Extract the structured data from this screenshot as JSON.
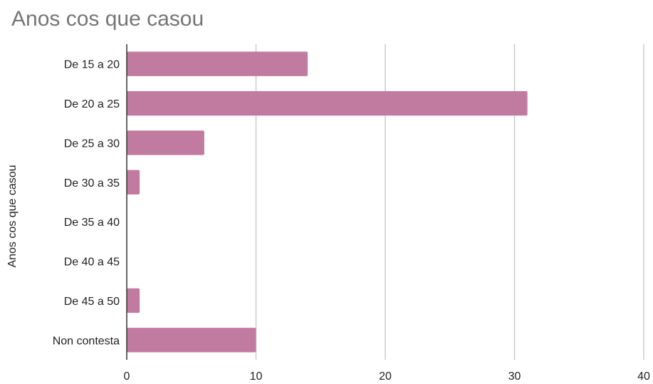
{
  "chart_data": {
    "type": "bar",
    "orientation": "horizontal",
    "title": "Anos cos que casou",
    "xlabel": "",
    "ylabel": "Anos cos que casou",
    "categories": [
      "De 15 a 20",
      "De 20 a 25",
      "De 25 a 30",
      "De 30 a 35",
      "De 35 a 40",
      "De 40 a 45",
      "De 45 a 50",
      "Non contesta"
    ],
    "values": [
      14,
      31,
      6,
      1,
      0,
      0,
      1,
      10
    ],
    "xlim": [
      0,
      40
    ],
    "xticks": [
      "0",
      "10",
      "20",
      "30",
      "40"
    ],
    "bar_color": "#c27ba0",
    "gridlines": true,
    "legend": "none"
  }
}
